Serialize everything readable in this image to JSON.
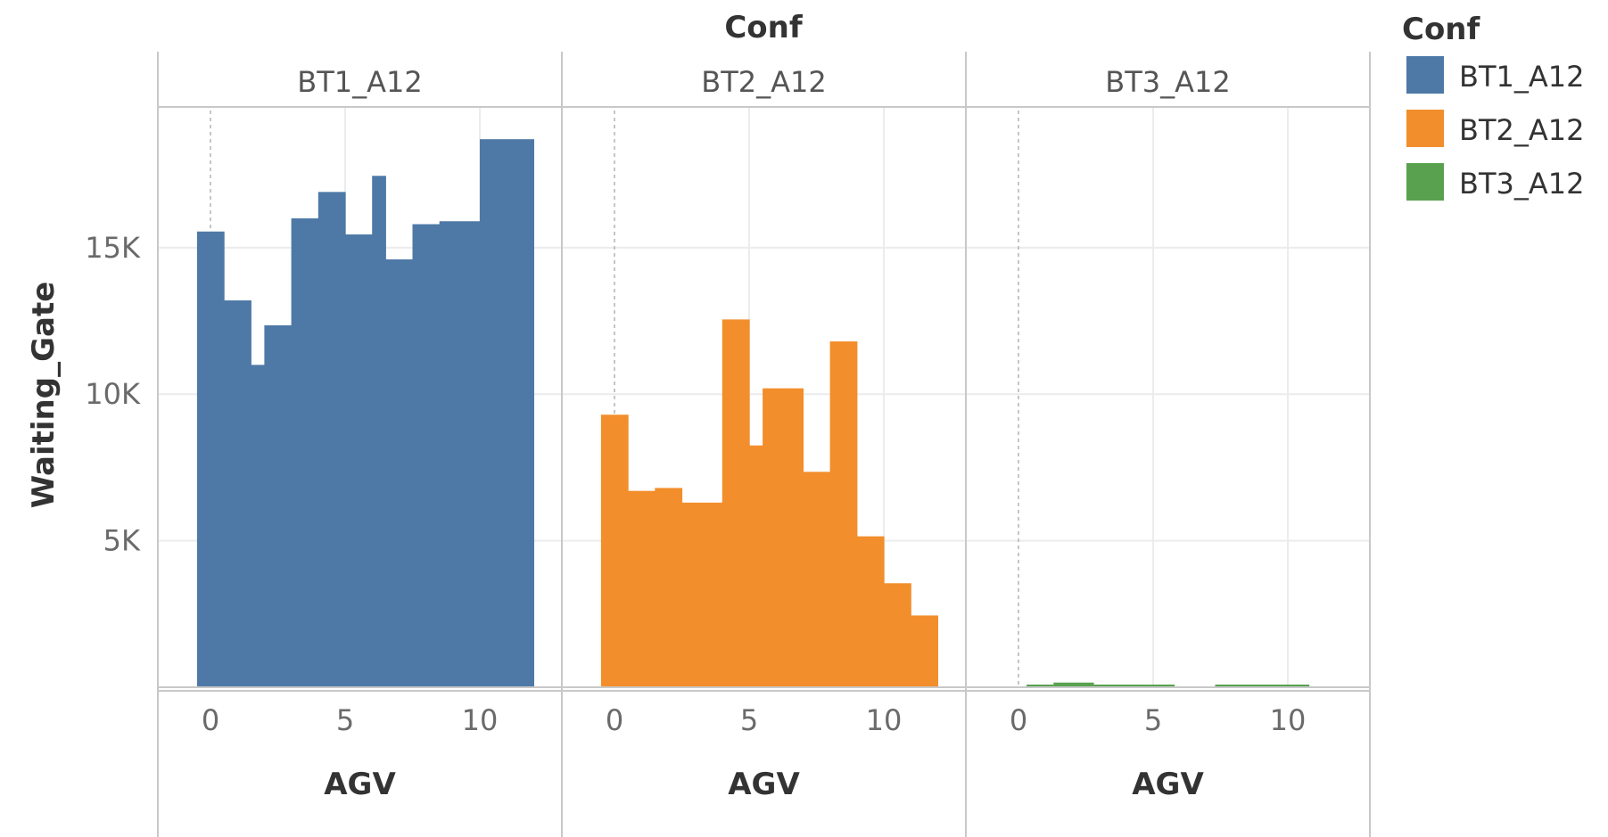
{
  "chart_data": {
    "type": "bar",
    "title": "Conf",
    "xlabel": "AGV",
    "ylabel": "Waiting_Gate",
    "x_ticks": [
      "0",
      "5",
      "10"
    ],
    "y_ticks": [
      "5K",
      "10K",
      "15K"
    ],
    "ylim": [
      0,
      19800
    ],
    "xlim": [
      -1.2,
      13.8
    ],
    "grid": true,
    "legend": {
      "title": "Conf",
      "position": "right",
      "items": [
        {
          "label": "BT1_A12",
          "color": "#4e79a7"
        },
        {
          "label": "BT2_A12",
          "color": "#f28e2b"
        },
        {
          "label": "BT3_A12",
          "color": "#59a14f"
        }
      ]
    },
    "panels": [
      {
        "name": "BT1_A12",
        "color": "#4e79a7",
        "x": [
          -0.5,
          0.5,
          1.5,
          2,
          3,
          4,
          5,
          6,
          6.5,
          7.5,
          8.5,
          9,
          10,
          11
        ],
        "bin_end": 12,
        "values": [
          15550,
          13200,
          11000,
          12350,
          16000,
          16900,
          15450,
          17450,
          14600,
          15800,
          15900,
          15900,
          18700,
          18700
        ]
      },
      {
        "name": "BT2_A12",
        "color": "#f28e2b",
        "x": [
          -0.5,
          0.5,
          1.5,
          2.5,
          3,
          4,
          5,
          5.5,
          6.5,
          7,
          8,
          9,
          10,
          11
        ],
        "bin_end": 12,
        "values": [
          9300,
          6700,
          6800,
          6300,
          6300,
          12550,
          8250,
          10200,
          10200,
          7350,
          11800,
          5150,
          3550,
          2450
        ]
      },
      {
        "name": "BT3_A12",
        "color": "#59a14f",
        "segments": [
          [
            0.3,
            1.3,
            90
          ],
          [
            1.3,
            2.8,
            160
          ],
          [
            2.8,
            5.8,
            90
          ],
          [
            7.3,
            10.8,
            90
          ]
        ]
      }
    ]
  }
}
